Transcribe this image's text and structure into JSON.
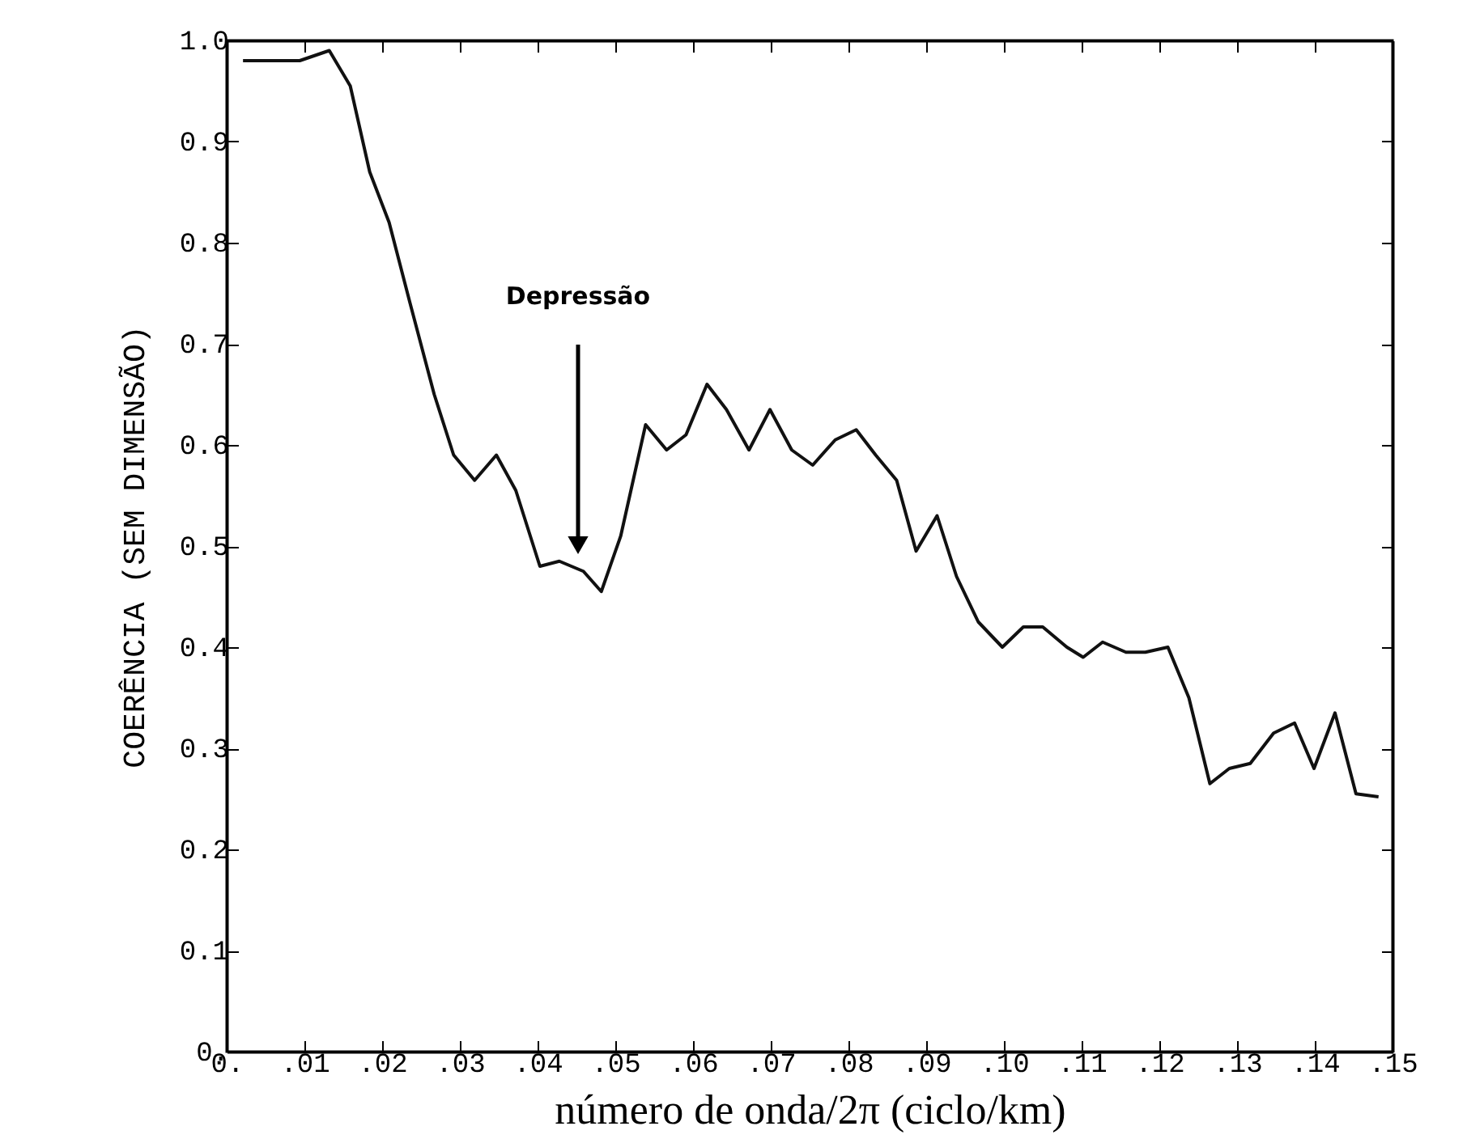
{
  "chart_data": {
    "type": "line",
    "xlabel": "número de onda/2π (ciclo/km)",
    "ylabel": "COERÊNCIA (SEM DIMENSÃO)",
    "x": [
      0.0021,
      0.0094,
      0.0132,
      0.0159,
      0.0184,
      0.0209,
      0.0236,
      0.0267,
      0.0292,
      0.0319,
      0.0347,
      0.0372,
      0.0403,
      0.0428,
      0.0459,
      0.0482,
      0.0507,
      0.0539,
      0.0566,
      0.0591,
      0.0618,
      0.0643,
      0.0672,
      0.0699,
      0.0727,
      0.0754,
      0.0783,
      0.081,
      0.0835,
      0.0862,
      0.0887,
      0.0914,
      0.0939,
      0.0967,
      0.0998,
      0.1025,
      0.105,
      0.1081,
      0.1102,
      0.1127,
      0.1157,
      0.1182,
      0.1211,
      0.1238,
      0.1265,
      0.129,
      0.1317,
      0.1347,
      0.1374,
      0.1399,
      0.1426,
      0.1453,
      0.1482
    ],
    "series": [
      {
        "color": "#111111",
        "values": [
          0.98,
          0.98,
          0.99,
          0.955,
          0.87,
          0.82,
          0.74,
          0.65,
          0.59,
          0.565,
          0.59,
          0.555,
          0.48,
          0.485,
          0.475,
          0.455,
          0.51,
          0.62,
          0.595,
          0.61,
          0.66,
          0.635,
          0.595,
          0.635,
          0.595,
          0.58,
          0.605,
          0.615,
          0.59,
          0.565,
          0.495,
          0.53,
          0.47,
          0.425,
          0.4,
          0.42,
          0.42,
          0.4,
          0.39,
          0.405,
          0.395,
          0.395,
          0.4,
          0.35,
          0.265,
          0.28,
          0.285,
          0.315,
          0.325,
          0.28,
          0.335,
          0.255,
          0.252
        ]
      }
    ],
    "xlim": [
      0,
      0.15
    ],
    "xticks": [
      {
        "value": 0,
        "label": "0."
      },
      {
        "value": 0.01,
        "label": ".01"
      },
      {
        "value": 0.02,
        "label": ".02"
      },
      {
        "value": 0.03,
        "label": ".03"
      },
      {
        "value": 0.04,
        "label": ".04"
      },
      {
        "value": 0.05,
        "label": ".05"
      },
      {
        "value": 0.06,
        "label": ".06"
      },
      {
        "value": 0.07,
        "label": ".07"
      },
      {
        "value": 0.08,
        "label": ".08"
      },
      {
        "value": 0.09,
        "label": ".09"
      },
      {
        "value": 0.1,
        "label": ".10"
      },
      {
        "value": 0.11,
        "label": ".11"
      },
      {
        "value": 0.12,
        "label": ".12"
      },
      {
        "value": 0.13,
        "label": ".13"
      },
      {
        "value": 0.14,
        "label": ".14"
      },
      {
        "value": 0.15,
        "label": ".15"
      }
    ],
    "ylim": [
      0,
      1
    ],
    "yticks": [
      {
        "value": 0,
        "label": "0."
      },
      0.1,
      0.2,
      0.3,
      0.4,
      0.5,
      0.6,
      0.7,
      0.8,
      0.9,
      {
        "value": 1,
        "label": "1.0"
      }
    ],
    "annotations": [
      "Depressão"
    ],
    "grid": false,
    "marker": "none",
    "line_style": "solid"
  }
}
